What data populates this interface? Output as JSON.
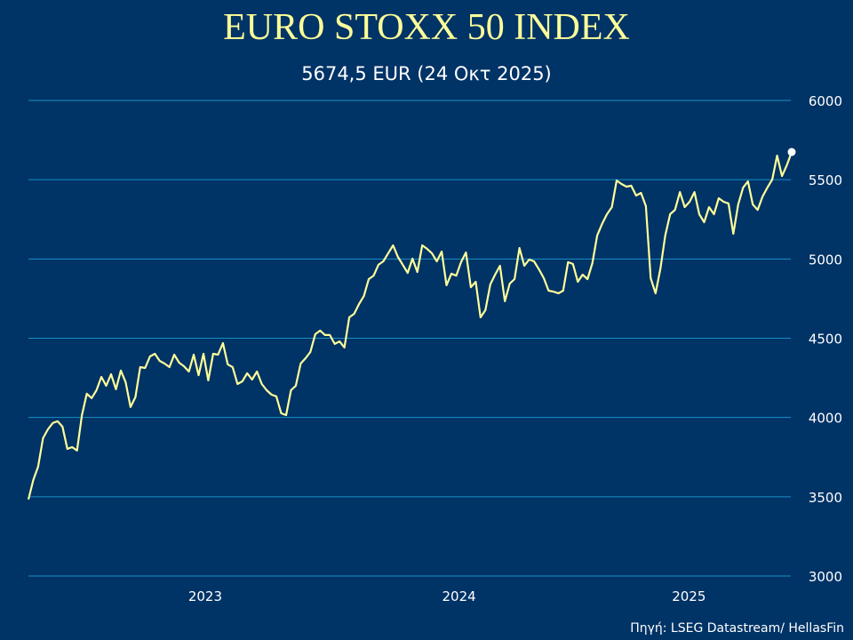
{
  "chart_data": {
    "type": "line",
    "title": "EURO STOXX 50 INDEX",
    "subtitle": "5674,5 EUR (24 Οκτ 2025)",
    "source": "Πηγή: LSEG Datastream/ HellasFin",
    "xlabel": "",
    "ylabel": "",
    "x_range": [
      "2022-10-21",
      "2025-10-24"
    ],
    "frequency": "weekly",
    "xticks": [
      "2023",
      "2024",
      "2025"
    ],
    "ylim": [
      3000,
      6000
    ],
    "yticks": [
      3000,
      3500,
      4000,
      4500,
      5000,
      5500,
      6000
    ],
    "y_axis_side": "right",
    "grid": "horizontal",
    "last_point_marker": true,
    "colors": {
      "background": "#003366",
      "line": "#ffff99",
      "grid": "#1a8fc4",
      "title": "#ffff99",
      "text": "#ffffff",
      "marker": "#ffffff"
    },
    "values": [
      3483,
      3606,
      3690,
      3869,
      3925,
      3965,
      3976,
      3942,
      3802,
      3813,
      3791,
      4015,
      4150,
      4122,
      4172,
      4256,
      4200,
      4273,
      4178,
      4296,
      4223,
      4066,
      4128,
      4318,
      4312,
      4385,
      4402,
      4357,
      4340,
      4318,
      4396,
      4346,
      4323,
      4290,
      4396,
      4267,
      4402,
      4234,
      4402,
      4396,
      4469,
      4335,
      4318,
      4211,
      4228,
      4279,
      4239,
      4290,
      4211,
      4172,
      4144,
      4133,
      4026,
      4015,
      4172,
      4200,
      4340,
      4374,
      4413,
      4525,
      4548,
      4520,
      4520,
      4464,
      4480,
      4441,
      4632,
      4654,
      4716,
      4766,
      4873,
      4895,
      4963,
      4985,
      5036,
      5086,
      5013,
      4963,
      4912,
      5002,
      4918,
      5086,
      5064,
      5036,
      4985,
      5047,
      4834,
      4907,
      4895,
      4980,
      5041,
      4822,
      4856,
      4632,
      4677,
      4839,
      4901,
      4957,
      4733,
      4845,
      4873,
      5069,
      4957,
      4996,
      4985,
      4935,
      4879,
      4800,
      4794,
      4783,
      4800,
      4980,
      4968,
      4856,
      4901,
      4873,
      4974,
      5148,
      5221,
      5282,
      5327,
      5495,
      5473,
      5456,
      5462,
      5400,
      5417,
      5333,
      4879,
      4783,
      4940,
      5148,
      5282,
      5310,
      5422,
      5327,
      5361,
      5422,
      5282,
      5232,
      5327,
      5282,
      5383,
      5361,
      5350,
      5159,
      5344,
      5450,
      5489,
      5344,
      5310,
      5394,
      5450,
      5501,
      5652,
      5523,
      5591,
      5674.5
    ]
  }
}
